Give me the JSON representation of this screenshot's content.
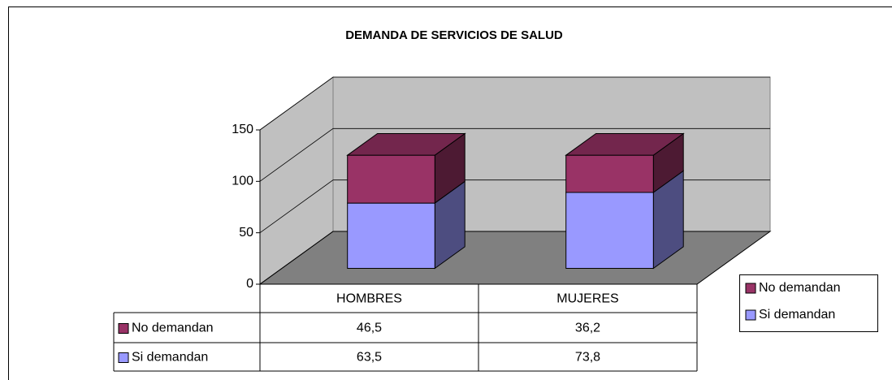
{
  "chart_data": {
    "type": "bar3d_stacked",
    "title": "DEMANDA DE SERVICIOS DE SALUD",
    "categories": [
      "HOMBRES",
      "MUJERES"
    ],
    "series": [
      {
        "name": "No demandan",
        "color": "#993366",
        "values": [
          46.5,
          36.2
        ],
        "value_labels": [
          "46,5",
          "36,2"
        ]
      },
      {
        "name": "Si demandan",
        "color": "#9999ff",
        "values": [
          63.5,
          73.8
        ],
        "value_labels": [
          "63,5",
          "73,8"
        ]
      }
    ],
    "ylim": [
      0,
      150
    ],
    "yticks": [
      0,
      50,
      100,
      150
    ],
    "grid": true,
    "legend": "right"
  }
}
